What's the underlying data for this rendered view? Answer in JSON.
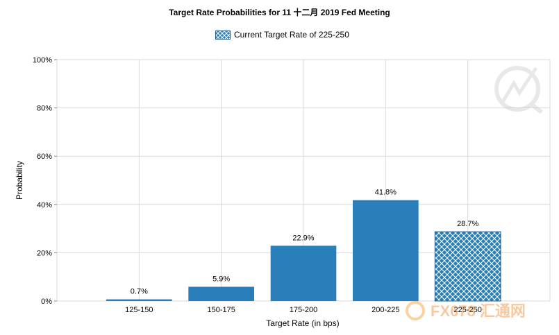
{
  "chart_data": {
    "type": "bar",
    "title": "Target Rate Probabilities for 11 十二月 2019 Fed Meeting",
    "xlabel": "Target Rate (in bps)",
    "ylabel": "Probability",
    "categories": [
      "125-150",
      "150-175",
      "175-200",
      "200-225",
      "225-250"
    ],
    "values": [
      0.7,
      5.9,
      22.9,
      41.8,
      28.7
    ],
    "data_labels": [
      "0.7%",
      "5.9%",
      "22.9%",
      "41.8%",
      "28.7%"
    ],
    "highlighted_category": "225-250",
    "ylim": [
      0,
      100
    ],
    "yticks": [
      "0%",
      "20%",
      "40%",
      "60%",
      "80%",
      "100%"
    ],
    "grid": true,
    "legend": {
      "label": "Current Target Rate of 225-250",
      "position": "top-center"
    },
    "colors": {
      "bar": "#2a7fba",
      "hatch_bg": "#2a7fba",
      "hatch_line": "#ffffff",
      "grid": "#d9d9d9"
    }
  },
  "watermark": {
    "text": "FX678 汇通网"
  }
}
